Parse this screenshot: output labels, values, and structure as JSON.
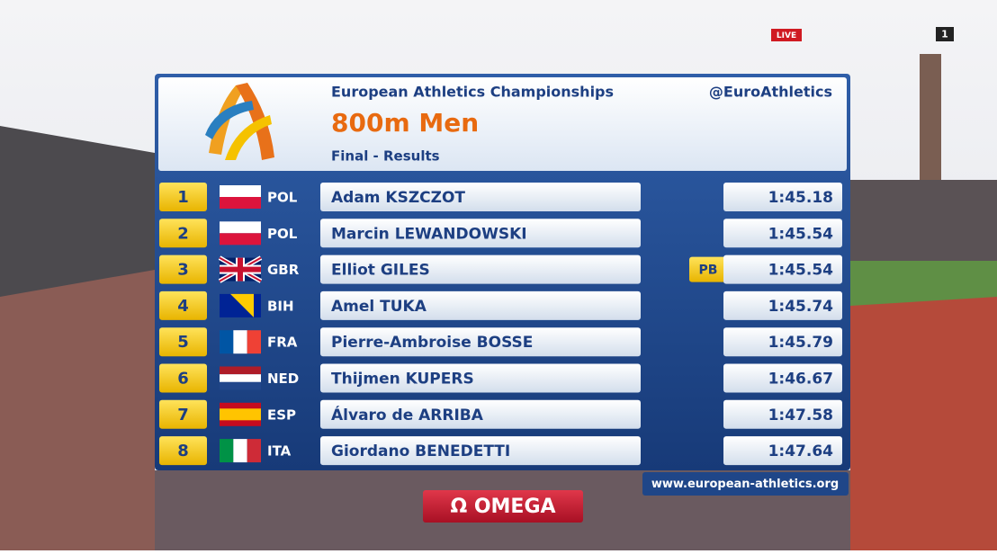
{
  "live_badge": "LIVE",
  "channel_badge": "1",
  "header": {
    "event": "European Athletics Championships",
    "handle": "@EuroAthletics",
    "title": "800m Men",
    "subtitle": "Final - Results"
  },
  "results": [
    {
      "rank": 1,
      "country": "POL",
      "name": "Adam KSZCZOT",
      "time": "1:45.18"
    },
    {
      "rank": 2,
      "country": "POL",
      "name": "Marcin LEWANDOWSKI",
      "time": "1:45.54"
    },
    {
      "rank": 3,
      "country": "GBR",
      "name": "Elliot GILES",
      "note": "PB",
      "time": "1:45.54"
    },
    {
      "rank": 4,
      "country": "BIH",
      "name": "Amel TUKA",
      "time": "1:45.74"
    },
    {
      "rank": 5,
      "country": "FRA",
      "name": "Pierre-Ambroise BOSSE",
      "time": "1:45.79"
    },
    {
      "rank": 6,
      "country": "NED",
      "name": "Thijmen KUPERS",
      "time": "1:46.67"
    },
    {
      "rank": 7,
      "country": "ESP",
      "name": "Álvaro de ARRIBA",
      "time": "1:47.58"
    },
    {
      "rank": 8,
      "country": "ITA",
      "name": "Giordano BENEDETTI",
      "time": "1:47.64"
    }
  ],
  "footer": {
    "website": "www.european-athletics.org",
    "sponsor": "Ω OMEGA"
  }
}
